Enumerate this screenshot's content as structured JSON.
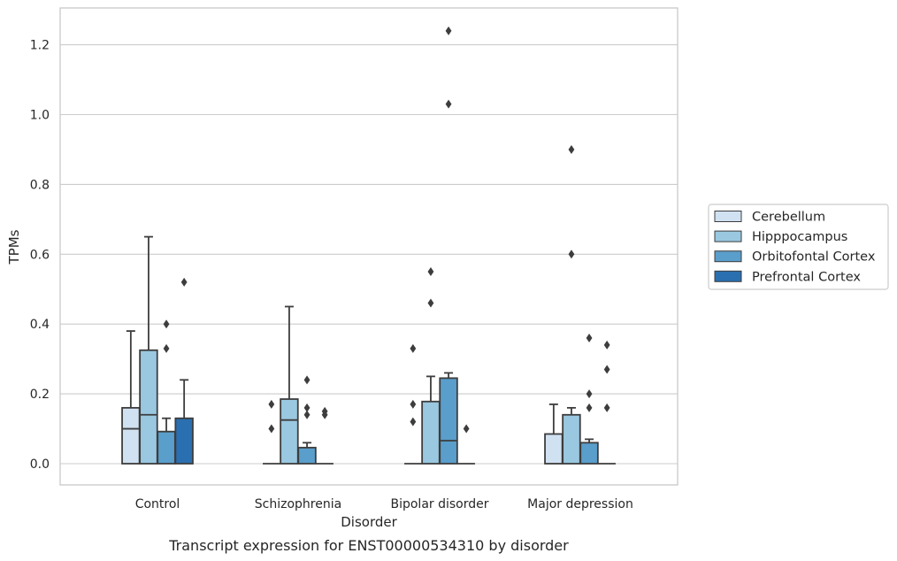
{
  "chart_data": {
    "type": "box",
    "xlabel": "Disorder",
    "ylabel": "TPMs",
    "caption": "Transcript expression for ENST00000534310 by disorder",
    "categories": [
      "Control",
      "Schizophrenia",
      "Bipolar disorder",
      "Major depression"
    ],
    "ylim": [
      -0.06,
      1.3
    ],
    "yticks": [
      "0.0",
      "0.2",
      "0.4",
      "0.6",
      "0.8",
      "1.0",
      "1.2"
    ],
    "grid": true,
    "legend_position": "right",
    "series": [
      {
        "name": "Cerebellum",
        "color": "#d0e1f2",
        "boxes": [
          {
            "q1": 0,
            "median": 0.1,
            "q3": 0.16,
            "whisker_low": 0,
            "whisker_high": 0.38,
            "outliers": []
          },
          {
            "q1": 0,
            "median": 0,
            "q3": 0,
            "whisker_low": 0,
            "whisker_high": 0,
            "outliers": [
              0.17,
              0.1
            ]
          },
          {
            "q1": 0,
            "median": 0,
            "q3": 0,
            "whisker_low": 0,
            "whisker_high": 0,
            "outliers": [
              0.33,
              0.17,
              0.12
            ]
          },
          {
            "q1": 0,
            "median": 0,
            "q3": 0.085,
            "whisker_low": 0,
            "whisker_high": 0.17,
            "outliers": []
          }
        ]
      },
      {
        "name": "Hipppocampus",
        "color": "#9ac8e0",
        "boxes": [
          {
            "q1": 0,
            "median": 0.14,
            "q3": 0.325,
            "whisker_low": 0,
            "whisker_high": 0.65,
            "outliers": []
          },
          {
            "q1": 0,
            "median": 0.125,
            "q3": 0.185,
            "whisker_low": 0,
            "whisker_high": 0.45,
            "outliers": []
          },
          {
            "q1": 0,
            "median": 0,
            "q3": 0.178,
            "whisker_low": 0,
            "whisker_high": 0.25,
            "outliers": [
              0.55,
              0.46
            ]
          },
          {
            "q1": 0,
            "median": 0,
            "q3": 0.14,
            "whisker_low": 0,
            "whisker_high": 0.16,
            "outliers": [
              0.9,
              0.6
            ]
          }
        ]
      },
      {
        "name": "Orbitofontal Cortex",
        "color": "#5a9ecb",
        "boxes": [
          {
            "q1": 0,
            "median": 0,
            "q3": 0.092,
            "whisker_low": 0,
            "whisker_high": 0.13,
            "outliers": [
              0.4,
              0.33
            ]
          },
          {
            "q1": 0,
            "median": 0,
            "q3": 0.046,
            "whisker_low": 0,
            "whisker_high": 0.06,
            "outliers": [
              0.24,
              0.16,
              0.14
            ]
          },
          {
            "q1": 0,
            "median": 0.066,
            "q3": 0.245,
            "whisker_low": 0,
            "whisker_high": 0.26,
            "outliers": [
              1.24,
              1.03
            ]
          },
          {
            "q1": 0,
            "median": 0,
            "q3": 0.06,
            "whisker_low": 0,
            "whisker_high": 0.07,
            "outliers": [
              0.36,
              0.2,
              0.16
            ]
          }
        ]
      },
      {
        "name": "Prefrontal Cortex",
        "color": "#2a6fb0",
        "boxes": [
          {
            "q1": 0,
            "median": 0,
            "q3": 0.13,
            "whisker_low": 0,
            "whisker_high": 0.24,
            "outliers": [
              0.52
            ]
          },
          {
            "q1": 0,
            "median": 0,
            "q3": 0,
            "whisker_low": 0,
            "whisker_high": 0,
            "outliers": [
              0.15,
              0.14
            ]
          },
          {
            "q1": 0,
            "median": 0,
            "q3": 0,
            "whisker_low": 0,
            "whisker_high": 0,
            "outliers": [
              0.1
            ]
          },
          {
            "q1": 0,
            "median": 0,
            "q3": 0,
            "whisker_low": 0,
            "whisker_high": 0,
            "outliers": [
              0.34,
              0.27,
              0.16
            ]
          }
        ]
      }
    ]
  }
}
